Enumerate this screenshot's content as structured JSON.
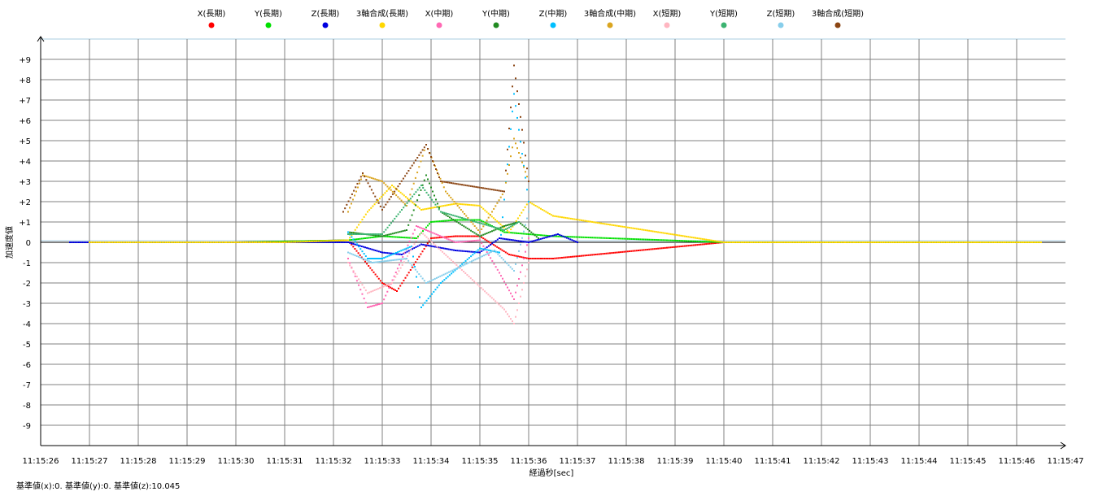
{
  "chart_data": {
    "type": "scatter",
    "xlabel": "経過秒[sec]",
    "ylabel": "加速度値",
    "ylim": [
      -10,
      10
    ],
    "y_ticks": [
      9,
      8,
      7,
      6,
      5,
      4,
      3,
      2,
      1,
      0,
      -1,
      -2,
      -3,
      -4,
      -5,
      -6,
      -7,
      -8,
      -9
    ],
    "y_tick_labels": [
      "+9",
      "+8",
      "+7",
      "+6",
      "+5",
      "+4",
      "+3",
      "+2",
      "+1",
      "0",
      "-1",
      "-2",
      "-3",
      "-4",
      "-5",
      "-6",
      "-7",
      "-8",
      "-9"
    ],
    "x_tick_labels": [
      "11:15:26",
      "11:15:27",
      "11:15:28",
      "11:15:29",
      "11:15:30",
      "11:15:31",
      "11:15:32",
      "11:15:33",
      "11:15:34",
      "11:15:35",
      "11:15:36",
      "11:15:37",
      "11:15:38",
      "11:15:39",
      "11:15:40",
      "11:15:41",
      "11:15:42",
      "11:15:43",
      "11:15:44",
      "11:15:45",
      "11:15:46",
      "11:15:47"
    ],
    "grid": true,
    "legend_position": "top",
    "series": [
      {
        "name": "X(長期)",
        "color": "#ff0000",
        "x": [
          "11:15:27",
          "11:15:30",
          "11:15:32.3",
          "11:15:33",
          "11:15:33.3",
          "11:15:34",
          "11:15:34.5",
          "11:15:35",
          "11:15:35.6",
          "11:15:36",
          "11:15:36.5",
          "11:15:40",
          "11:15:46.5"
        ],
        "y": [
          0,
          0,
          0.1,
          -2.0,
          -2.4,
          0.2,
          0.3,
          0.3,
          -0.6,
          -0.8,
          -0.8,
          0,
          0
        ]
      },
      {
        "name": "Y(長期)",
        "color": "#00e000",
        "x": [
          "11:15:27",
          "11:15:30",
          "11:15:32.3",
          "11:15:33",
          "11:15:33.7",
          "11:15:34",
          "11:15:34.5",
          "11:15:35",
          "11:15:35.5",
          "11:15:36",
          "11:15:36.5",
          "11:15:40",
          "11:15:46.5"
        ],
        "y": [
          0,
          0,
          0.1,
          0.3,
          0.2,
          1.0,
          1.1,
          1.1,
          0.5,
          0.4,
          0.3,
          0,
          0
        ]
      },
      {
        "name": "Z(長期)",
        "color": "#0000e0",
        "x": [
          "11:15:26.6",
          "11:15:29",
          "11:15:32.3",
          "11:15:33",
          "11:15:33.4",
          "11:15:33.8",
          "11:15:34.5",
          "11:15:35",
          "11:15:35.4",
          "11:15:36",
          "11:15:36.6",
          "11:15:37"
        ],
        "y": [
          0,
          0,
          0,
          -0.5,
          -0.6,
          -0.1,
          -0.4,
          -0.5,
          0.2,
          0.0,
          0.4,
          0
        ]
      },
      {
        "name": "3軸合成(長期)",
        "color": "#ffd700",
        "x": [
          "11:15:27",
          "11:15:31",
          "11:15:32.3",
          "11:15:32.7",
          "11:15:33.2",
          "11:15:33.8",
          "11:15:34.5",
          "11:15:35",
          "11:15:35.6",
          "11:15:36",
          "11:15:36.5",
          "11:15:40",
          "11:15:46.5"
        ],
        "y": [
          0,
          0,
          0.1,
          1.5,
          2.8,
          1.6,
          1.9,
          1.8,
          0.5,
          2.0,
          1.3,
          0,
          0
        ]
      },
      {
        "name": "X(中期)",
        "color": "#ff69b4",
        "x": [
          "11:15:32.3",
          "11:15:32.7",
          "11:15:33",
          "11:15:33.7",
          "11:15:34",
          "11:15:34.5",
          "11:15:35",
          "11:15:35.4",
          "11:15:35.7",
          "11:15:36"
        ],
        "y": [
          -0.8,
          -3.2,
          -3.0,
          0.8,
          0.5,
          0.0,
          0.1,
          -1.5,
          -2.8,
          0.2
        ]
      },
      {
        "name": "Y(中期)",
        "color": "#228b22",
        "x": [
          "11:15:32.3",
          "11:15:33",
          "11:15:33.5",
          "11:15:33.9",
          "11:15:34.2",
          "11:15:35",
          "11:15:35.5",
          "11:15:35.8",
          "11:15:36.2"
        ],
        "y": [
          0.5,
          0.3,
          0.6,
          3.3,
          1.5,
          0.3,
          0.8,
          1.0,
          0.2
        ]
      },
      {
        "name": "Z(中期)",
        "color": "#00bfff",
        "x": [
          "11:15:32.3",
          "11:15:32.7",
          "11:15:33",
          "11:15:33.6",
          "11:15:33.8",
          "11:15:34.2",
          "11:15:35",
          "11:15:35.4",
          "11:15:35.7",
          "11:15:36"
        ],
        "y": [
          0.5,
          -0.8,
          -0.8,
          -0.2,
          -3.2,
          -2.0,
          -0.3,
          -0.5,
          7.3,
          2.0
        ]
      },
      {
        "name": "3軸合成(中期)",
        "color": "#daa520",
        "x": [
          "11:15:32.3",
          "11:15:32.6",
          "11:15:33",
          "11:15:33.5",
          "11:15:33.9",
          "11:15:34.3",
          "11:15:35",
          "11:15:35.5",
          "11:15:35.7",
          "11:15:36"
        ],
        "y": [
          1.5,
          3.3,
          3.0,
          1.8,
          4.8,
          2.5,
          0.5,
          2.5,
          5.1,
          3.0
        ]
      },
      {
        "name": "X(短期)",
        "color": "#ffb6c1",
        "x": [
          "11:15:32.3",
          "11:15:32.7",
          "11:15:33.2",
          "11:15:33.8",
          "11:15:35.5",
          "11:15:35.7",
          "11:15:36"
        ],
        "y": [
          -1.0,
          -2.5,
          -2.0,
          0.5,
          -3.3,
          -4.0,
          -1.0
        ]
      },
      {
        "name": "Y(短期)",
        "color": "#3cb371",
        "x": [
          "11:15:32.3",
          "11:15:33",
          "11:15:33.8",
          "11:15:34.2",
          "11:15:35.5",
          "11:15:35.8"
        ],
        "y": [
          0.4,
          0.4,
          2.8,
          1.5,
          0.6,
          1.0
        ]
      },
      {
        "name": "Z(短期)",
        "color": "#87ceeb",
        "x": [
          "11:15:32.3",
          "11:15:32.8",
          "11:15:33.5",
          "11:15:33.9",
          "11:15:35.3",
          "11:15:35.7",
          "11:15:36"
        ],
        "y": [
          -0.5,
          -1.0,
          -0.8,
          -2.0,
          -0.4,
          -1.4,
          1.5
        ]
      },
      {
        "name": "3軸合成(短期)",
        "color": "#8b4513",
        "x": [
          "11:15:32.2",
          "11:15:32.6",
          "11:15:33",
          "11:15:33.9",
          "11:15:34.2",
          "11:15:35.5",
          "11:15:35.7",
          "11:15:36"
        ],
        "y": [
          1.5,
          3.4,
          1.6,
          4.8,
          3.0,
          2.5,
          8.7,
          3.0
        ]
      }
    ]
  },
  "footer": {
    "base_x": "基準値(x):0.",
    "base_y": "基準値(y):0.",
    "base_z": "基準値(z):10.045"
  }
}
